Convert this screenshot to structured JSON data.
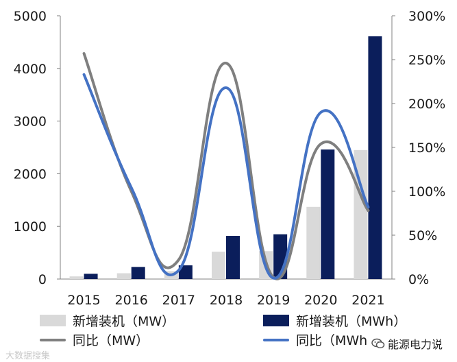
{
  "chart_data": {
    "type": "bar+line",
    "categories": [
      "2015",
      "2016",
      "2017",
      "2018",
      "2019",
      "2020",
      "2021"
    ],
    "bar_series": [
      {
        "name": "新增装机（MW）",
        "color": "#d9d9d9",
        "values": [
          50,
          110,
          150,
          520,
          530,
          1370,
          2450
        ]
      },
      {
        "name": "新增装机（MWh）",
        "color": "#0b1e5b",
        "values": [
          100,
          230,
          260,
          820,
          850,
          2460,
          4610
        ]
      }
    ],
    "line_series": [
      {
        "name": "同比（MW）",
        "color": "#7f7f7f",
        "values": [
          257,
          100,
          22,
          246,
          2,
          154,
          78
        ]
      },
      {
        "name": "同比（MWh）",
        "color": "#4472c4",
        "values": [
          233,
          104,
          10,
          218,
          1,
          190,
          82
        ]
      }
    ],
    "y_left": {
      "min": 0,
      "max": 5000,
      "ticks": [
        "0",
        "1000",
        "2000",
        "3000",
        "4000",
        "5000"
      ]
    },
    "y_right": {
      "min": 0,
      "max": 300,
      "ticks": [
        "0%",
        "50%",
        "100%",
        "150%",
        "200%",
        "250%",
        "300%"
      ]
    }
  },
  "legend": {
    "bar_mw": "新增装机（MW）",
    "bar_mwh": "新增装机（MWh）",
    "line_mw": "同比（MW）",
    "line_mwh": "同比（MWh"
  },
  "watermark": "大数据搜集",
  "brand": {
    "icon": "wechat-icon",
    "text": "能源电力说"
  }
}
